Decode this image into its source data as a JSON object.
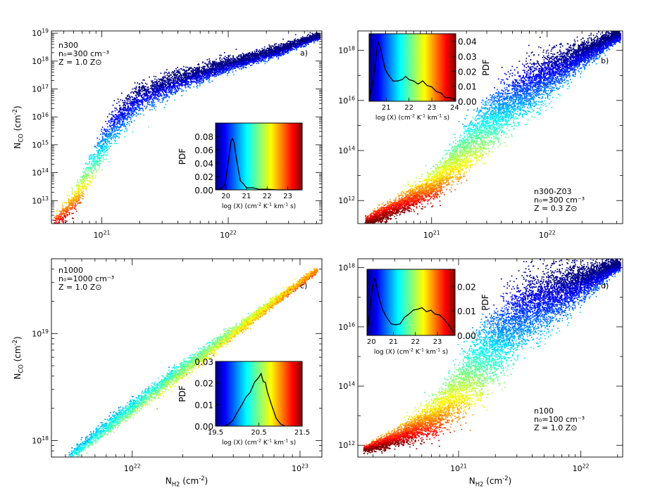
{
  "chart_data": [
    {
      "id": "a",
      "type": "scatter",
      "panel_label": "a)",
      "label_lines": [
        "n300",
        "n₀=300 cm⁻³",
        "Z = 1.0 Z⊙"
      ],
      "xlabel": "",
      "ylabel": "N_CO (cm^-2)",
      "xlog": true,
      "ylog": true,
      "xlim": [
        4e+20,
        5.5e+22
      ],
      "ylim": [
        1500000000000.0,
        1.2e+19
      ],
      "xticks": [
        {
          "v": 1e+21,
          "label": "10^21"
        },
        {
          "v": 1e+22,
          "label": "10^22"
        }
      ],
      "yticks": [
        {
          "v": 10000000000000.0,
          "label": "10^13"
        },
        {
          "v": 100000000000000.0,
          "label": "10^14"
        },
        {
          "v": 1000000000000000.0,
          "label": "10^15"
        },
        {
          "v": 1e+16,
          "label": "10^16"
        },
        {
          "v": 1e+17,
          "label": "10^17"
        },
        {
          "v": 1e+18,
          "label": "10^18"
        },
        {
          "v": 1e+19,
          "label": "10^19"
        }
      ],
      "colormap": "jet",
      "color_by": "log X",
      "color_range": [
        20,
        23.5
      ],
      "series_shape": {
        "note": "approximate point-cloud envelope in data units",
        "logx_range": [
          20.62,
          22.72
        ],
        "points_logx_logy_logX": [
          [
            20.65,
            12.3,
            23.0
          ],
          [
            20.8,
            13.2,
            22.4
          ],
          [
            20.95,
            14.5,
            21.4
          ],
          [
            21.1,
            15.8,
            20.6
          ],
          [
            21.3,
            16.7,
            20.3
          ],
          [
            21.6,
            17.3,
            20.2
          ],
          [
            22.0,
            17.9,
            20.1
          ],
          [
            22.4,
            18.4,
            20.05
          ],
          [
            22.7,
            18.9,
            20.0
          ]
        ],
        "spread_dex": [
          0.5,
          0.7,
          0.9,
          1.0,
          0.8,
          0.6,
          0.4,
          0.3,
          0.2
        ]
      },
      "inset": {
        "type": "line",
        "xlabel": "log (X)  (cm^-2 K^-1 km^-1 s)",
        "ylabel": "PDF",
        "xlim": [
          19.5,
          23.7
        ],
        "ylim": [
          0,
          0.1
        ],
        "xticks": [
          20,
          21,
          22,
          23
        ],
        "yticks": [
          0.0,
          0.02,
          0.04,
          0.06,
          0.08
        ],
        "ytick_labels": [
          "0.00",
          "0.02",
          "0.04",
          "0.06",
          "0.08"
        ],
        "x": [
          19.6,
          19.8,
          19.95,
          20.05,
          20.15,
          20.25,
          20.32,
          20.4,
          20.5,
          20.6,
          20.7,
          20.85,
          21.0,
          21.3,
          21.6,
          22.0,
          22.5,
          23.0,
          23.6
        ],
        "y": [
          0.0,
          0.002,
          0.008,
          0.025,
          0.05,
          0.072,
          0.078,
          0.07,
          0.05,
          0.03,
          0.015,
          0.008,
          0.004,
          0.002,
          0.001,
          0.001,
          0.0,
          0.0,
          0.0
        ]
      }
    },
    {
      "id": "b",
      "type": "scatter",
      "panel_label": "b)",
      "label_lines": [
        "n300-Z03",
        "n₀=300 cm⁻³",
        "Z = 0.3 Z⊙"
      ],
      "xlabel": "",
      "ylabel": "",
      "xlog": true,
      "ylog": true,
      "xlim": [
        2.3e+20,
        4.5e+22
      ],
      "ylim": [
        120000000000.0,
        6e+18
      ],
      "xticks": [
        {
          "v": 1e+21,
          "label": "10^21"
        },
        {
          "v": 1e+22,
          "label": "10^22"
        }
      ],
      "yticks": [
        {
          "v": 1000000000000.0,
          "label": "10^12"
        },
        {
          "v": 100000000000000.0,
          "label": "10^14"
        },
        {
          "v": 1e+16,
          "label": "10^16"
        },
        {
          "v": 1e+18,
          "label": "10^18"
        }
      ],
      "colormap": "jet",
      "color_by": "log X",
      "color_range": [
        20.5,
        24
      ],
      "series_shape": {
        "logx_range": [
          20.42,
          22.63
        ],
        "points_logx_logy_logX": [
          [
            20.45,
            11.2,
            23.9
          ],
          [
            20.7,
            11.8,
            23.6
          ],
          [
            21.0,
            12.6,
            23.0
          ],
          [
            21.2,
            13.6,
            22.5
          ],
          [
            21.4,
            14.6,
            22.1
          ],
          [
            21.6,
            15.6,
            21.6
          ],
          [
            21.9,
            16.7,
            21.1
          ],
          [
            22.2,
            17.6,
            20.8
          ],
          [
            22.6,
            18.6,
            20.6
          ]
        ],
        "spread_dex": [
          0.4,
          0.6,
          0.9,
          1.3,
          1.6,
          1.7,
          1.5,
          1.0,
          0.4
        ]
      },
      "inset": {
        "type": "line",
        "xlabel": "log (X)  (cm^-2 K^-1 km^-1 s)",
        "ylabel": "PDF",
        "xlim": [
          20.25,
          24.05
        ],
        "ylim": [
          0,
          0.045
        ],
        "xticks": [
          21,
          22,
          23,
          24
        ],
        "yticks": [
          0.0,
          0.01,
          0.02,
          0.03,
          0.04
        ],
        "ytick_labels": [
          "0.00",
          "0.01",
          "0.02",
          "0.03",
          "0.04"
        ],
        "x": [
          20.3,
          20.45,
          20.55,
          20.65,
          20.75,
          20.85,
          20.95,
          21.1,
          21.3,
          21.5,
          21.7,
          21.85,
          22.0,
          22.2,
          22.4,
          22.6,
          22.8,
          23.0,
          23.2,
          23.4,
          23.6,
          23.8,
          24.0
        ],
        "y": [
          0.005,
          0.015,
          0.03,
          0.039,
          0.036,
          0.028,
          0.022,
          0.017,
          0.014,
          0.013,
          0.015,
          0.016,
          0.015,
          0.013,
          0.012,
          0.013,
          0.011,
          0.009,
          0.007,
          0.005,
          0.003,
          0.002,
          0.001
        ]
      }
    },
    {
      "id": "c",
      "type": "scatter",
      "panel_label": "c)",
      "label_lines": [
        "n1000",
        "n₀=1000 cm⁻³",
        "Z = 1.0 Z⊙"
      ],
      "xlabel": "N_H2 (cm^-2)",
      "ylabel": "N_CO (cm^-2)",
      "xlog": true,
      "ylog": true,
      "xlim": [
        3.3e+21,
        1.35e+23
      ],
      "ylim": [
        7e+17,
        5e+19
      ],
      "xticks": [
        {
          "v": 1e+22,
          "label": "10^22"
        },
        {
          "v": 1e+23,
          "label": "10^23"
        }
      ],
      "yticks": [
        {
          "v": 1e+18,
          "label": "10^18"
        },
        {
          "v": 1e+19,
          "label": "10^19"
        }
      ],
      "colormap": "jet",
      "color_by": "log X",
      "color_range": [
        19.5,
        21.5
      ],
      "series_shape": {
        "logx_range": [
          21.62,
          23.1
        ],
        "points_logx_logy_logX": [
          [
            21.62,
            17.85,
            20.2
          ],
          [
            21.9,
            18.2,
            20.3
          ],
          [
            22.2,
            18.55,
            20.45
          ],
          [
            22.5,
            18.9,
            20.6
          ],
          [
            22.8,
            19.25,
            20.8
          ],
          [
            23.1,
            19.6,
            21.0
          ]
        ],
        "spread_dex": [
          0.08,
          0.12,
          0.12,
          0.1,
          0.07,
          0.04
        ]
      },
      "inset": {
        "type": "line",
        "xlabel": "log (X)  (cm^-2 K^-1 km^-1 s)",
        "ylabel": "PDF",
        "xlim": [
          19.5,
          21.5
        ],
        "ylim": [
          0,
          0.03
        ],
        "xticks": [
          19.5,
          20.5,
          21.5
        ],
        "xtick_labels": [
          "19.5",
          "20.5",
          "21.5"
        ],
        "yticks": [
          0.0,
          0.01,
          0.02,
          0.03
        ],
        "ytick_labels": [
          "0.00",
          "0.01",
          "0.02",
          "0.03"
        ],
        "x": [
          19.7,
          19.8,
          19.9,
          20.0,
          20.1,
          20.2,
          20.3,
          20.4,
          20.5,
          20.55,
          20.6,
          20.65,
          20.7,
          20.8,
          20.9,
          21.0,
          21.1
        ],
        "y": [
          0.0,
          0.001,
          0.003,
          0.006,
          0.01,
          0.013,
          0.016,
          0.02,
          0.023,
          0.024,
          0.021,
          0.02,
          0.016,
          0.009,
          0.004,
          0.001,
          0.0
        ]
      }
    },
    {
      "id": "d",
      "type": "scatter",
      "panel_label": "d)",
      "label_lines": [
        "n100",
        "n₀=100 cm⁻³",
        "Z = 1.0 Z⊙"
      ],
      "xlabel": "N_H2 (cm^-2)",
      "ylabel": "",
      "xlog": true,
      "ylog": true,
      "xlim": [
        1.5e+20,
        2.2e+22
      ],
      "ylim": [
        400000000000.0,
        2e+18
      ],
      "xticks": [
        {
          "v": 1e+21,
          "label": "10^21"
        },
        {
          "v": 1e+22,
          "label": "10^22"
        }
      ],
      "yticks": [
        {
          "v": 1000000000000.0,
          "label": "10^12"
        },
        {
          "v": 100000000000000.0,
          "label": "10^14"
        },
        {
          "v": 1e+16,
          "label": "10^16"
        },
        {
          "v": 1e+18,
          "label": "10^18"
        }
      ],
      "colormap": "jet",
      "color_by": "log X",
      "color_range": [
        20,
        23.8
      ],
      "series_shape": {
        "logx_range": [
          20.22,
          22.32
        ],
        "points_logx_logy_logX": [
          [
            20.25,
            11.9,
            23.7
          ],
          [
            20.5,
            12.3,
            23.3
          ],
          [
            20.8,
            13.0,
            22.7
          ],
          [
            21.0,
            13.9,
            22.2
          ],
          [
            21.2,
            14.9,
            21.6
          ],
          [
            21.4,
            15.9,
            21.0
          ],
          [
            21.6,
            16.7,
            20.6
          ],
          [
            21.9,
            17.3,
            20.3
          ],
          [
            22.3,
            18.1,
            20.1
          ]
        ],
        "spread_dex": [
          0.2,
          0.5,
          1.0,
          1.5,
          1.9,
          2.0,
          1.7,
          1.2,
          0.3
        ]
      },
      "inset": {
        "type": "line",
        "xlabel": "log (X)  (cm^-2 K^-1 km^-1 s)",
        "ylabel": "PDF",
        "xlim": [
          19.8,
          23.8
        ],
        "ylim": [
          0,
          0.027
        ],
        "xticks": [
          20,
          21,
          22,
          23
        ],
        "yticks": [
          0.0,
          0.01,
          0.02
        ],
        "ytick_labels": [
          "0.00",
          "0.01",
          "0.02"
        ],
        "x": [
          19.85,
          19.95,
          20.05,
          20.15,
          20.25,
          20.35,
          20.5,
          20.7,
          20.9,
          21.1,
          21.3,
          21.5,
          21.7,
          21.9,
          22.1,
          22.3,
          22.5,
          22.7,
          22.9,
          23.1,
          23.3,
          23.5,
          23.7
        ],
        "y": [
          0.004,
          0.012,
          0.02,
          0.023,
          0.02,
          0.015,
          0.011,
          0.007,
          0.005,
          0.004,
          0.005,
          0.007,
          0.009,
          0.01,
          0.011,
          0.011,
          0.01,
          0.01,
          0.009,
          0.008,
          0.007,
          0.004,
          0.002
        ]
      }
    }
  ]
}
